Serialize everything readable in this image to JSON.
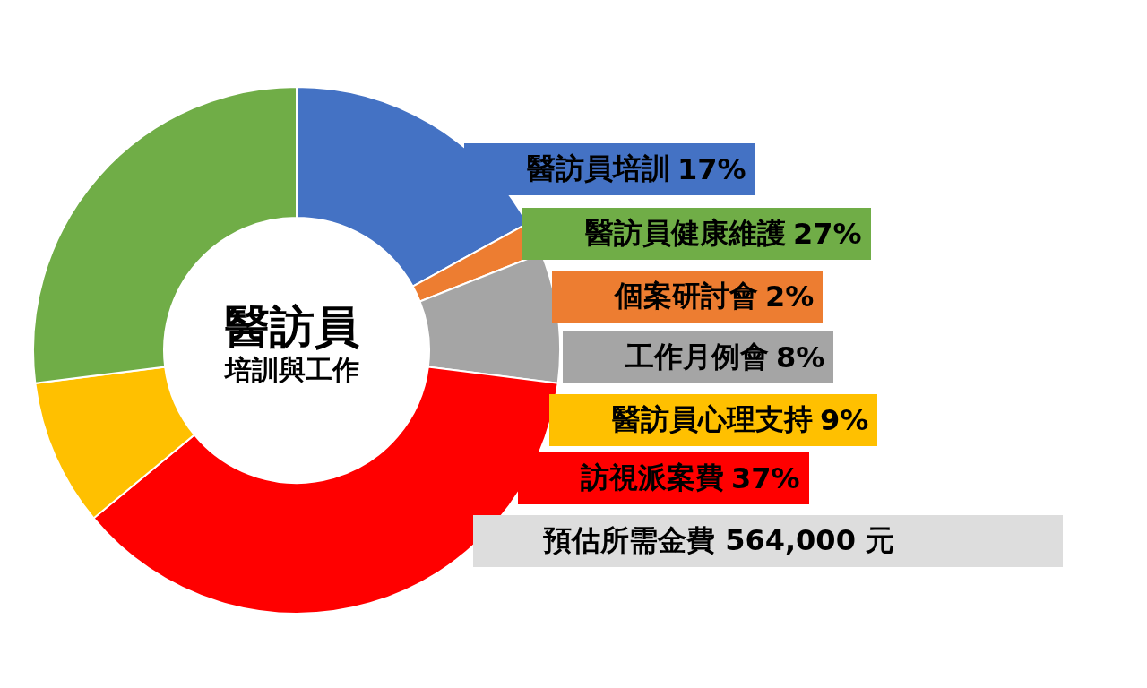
{
  "chart_data": {
    "type": "donut",
    "title": "醫訪員",
    "subtitle": "培訓與工作",
    "categories": [
      "醫訪員培訓",
      "個案研討會",
      "工作月例會",
      "訪視派案費",
      "醫訪員心理支持",
      "醫訪員健康維護"
    ],
    "values": [
      17,
      2,
      8,
      37,
      9,
      27
    ],
    "value_labels": [
      "17%",
      "2%",
      "8%",
      "37%",
      "9%",
      "27%"
    ],
    "colors": [
      "#4472c4",
      "#ed7d31",
      "#a5a5a5",
      "#ff0000",
      "#ffc000",
      "#70ad47"
    ],
    "legend": "right",
    "annotations": [
      "預估所需金費 564,000 元"
    ]
  }
}
